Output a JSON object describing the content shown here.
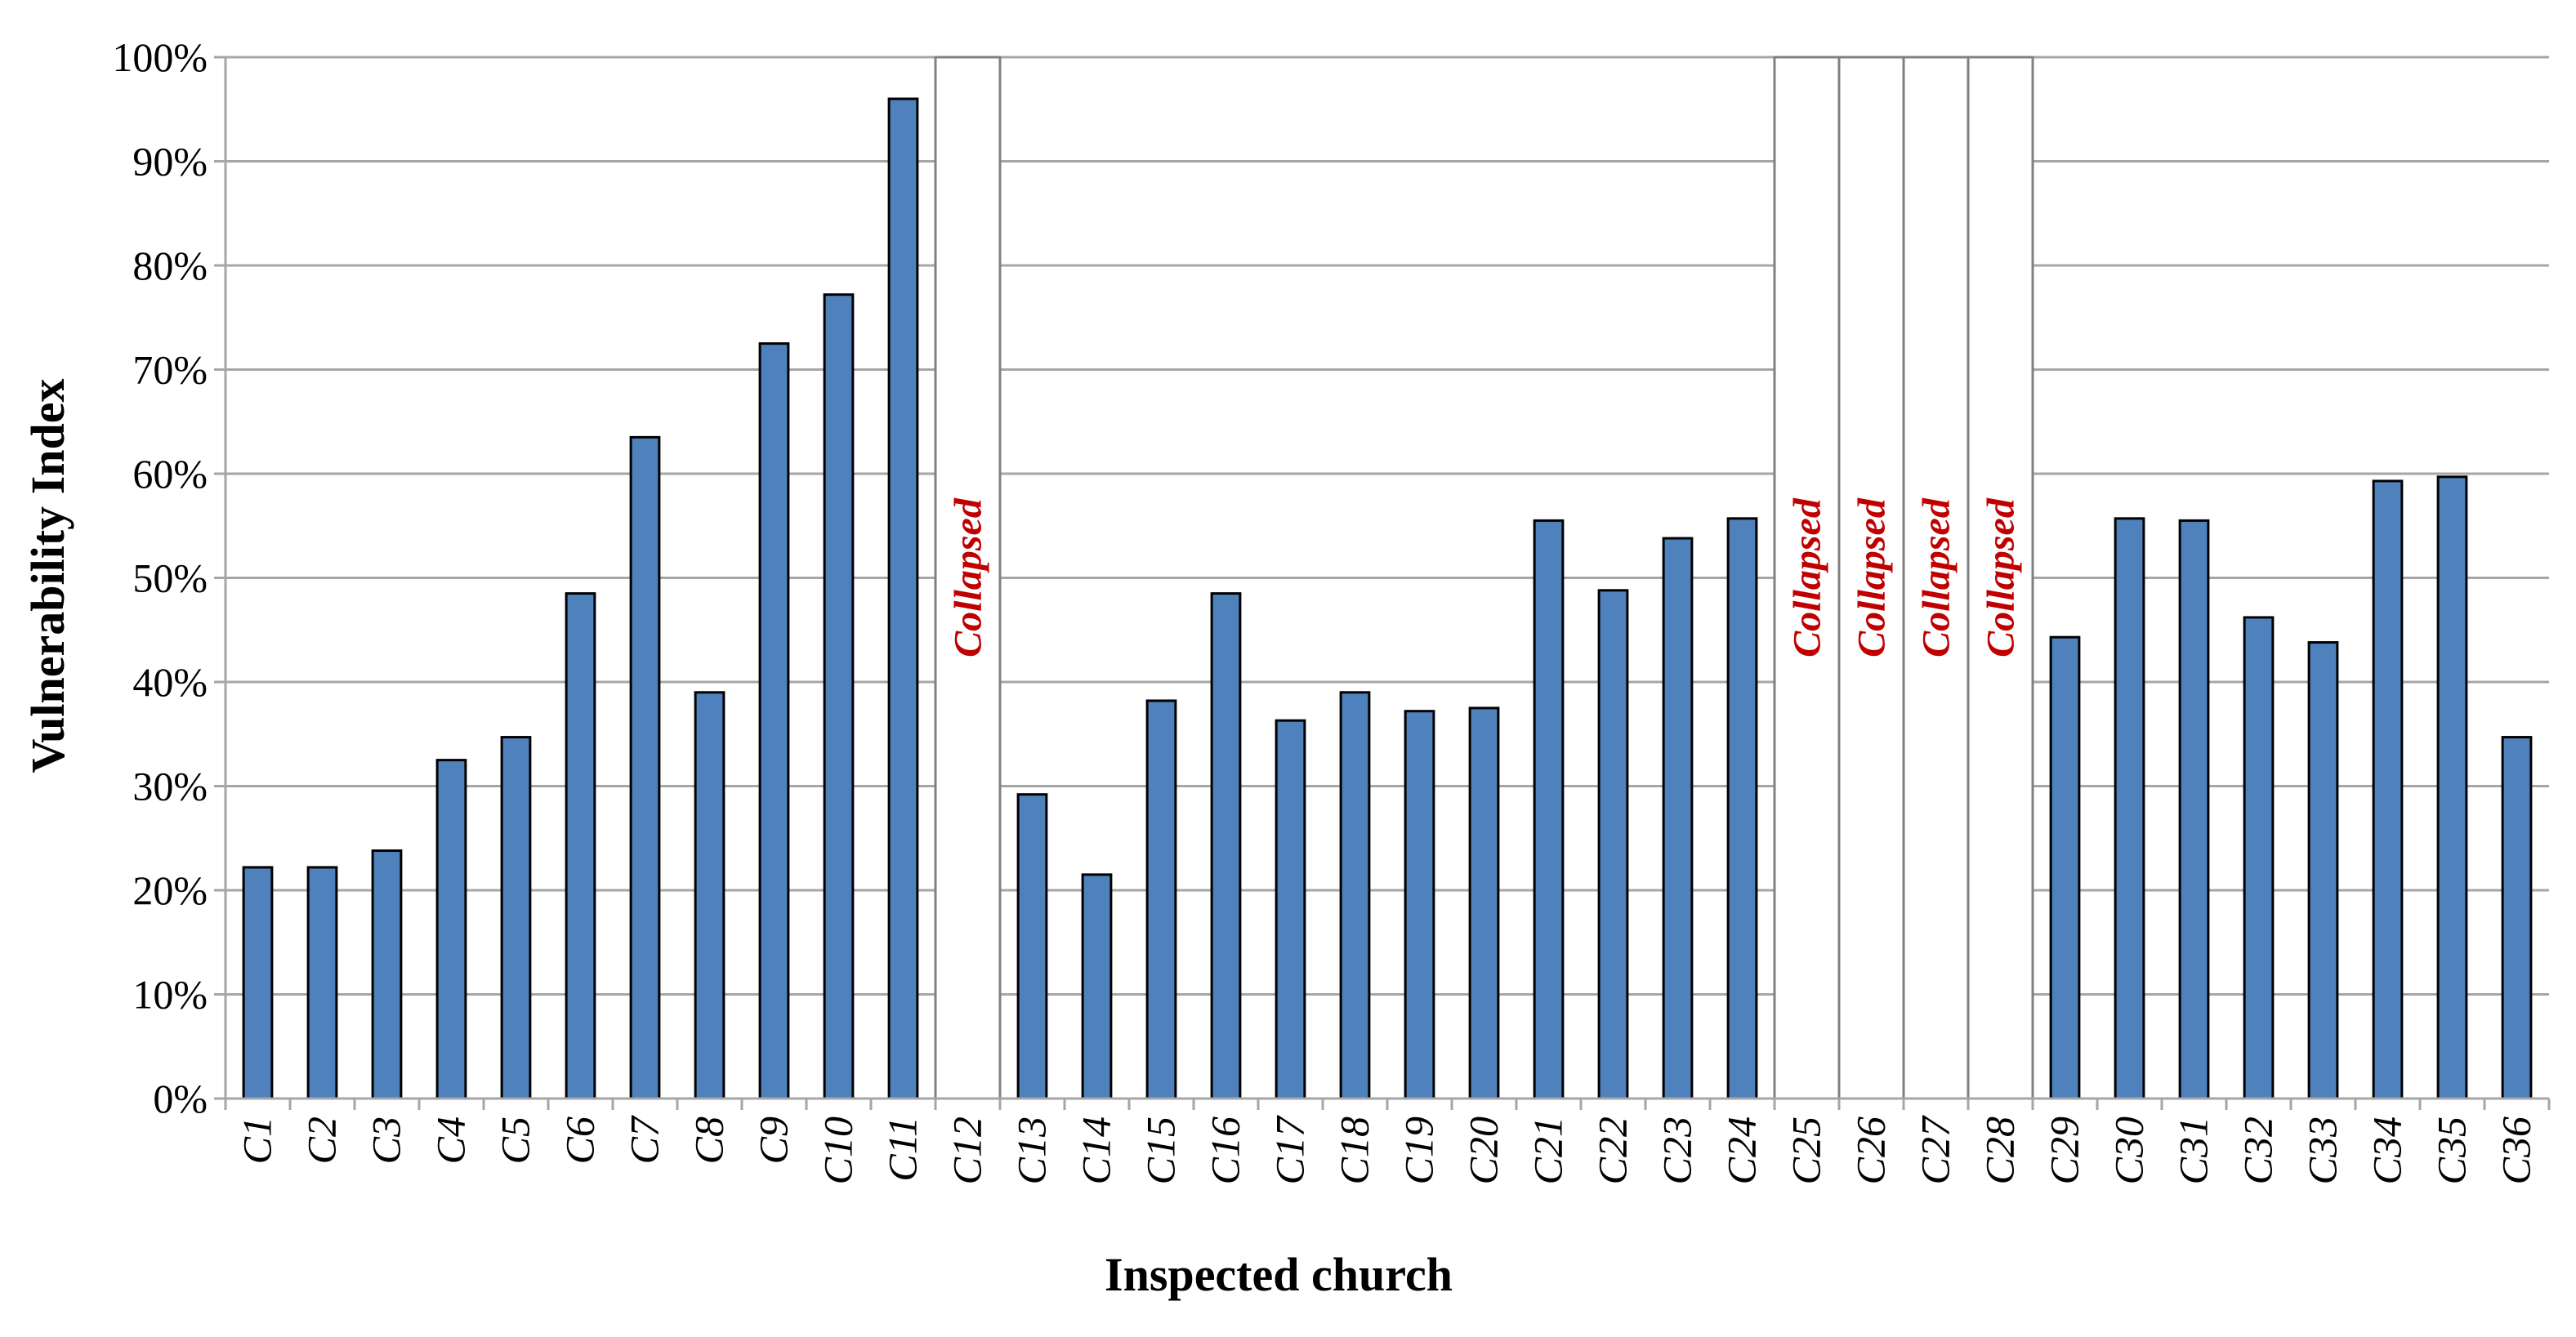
{
  "chart_data": {
    "type": "bar",
    "title": "",
    "xlabel": "Inspected church",
    "ylabel": "Vulnerability Index",
    "ylim": [
      0,
      100
    ],
    "yticks": [
      "0%",
      "10%",
      "20%",
      "30%",
      "40%",
      "50%",
      "60%",
      "70%",
      "80%",
      "90%",
      "100%"
    ],
    "grid": true,
    "categories": [
      "C1",
      "C2",
      "C3",
      "C4",
      "C5",
      "C6",
      "C7",
      "C8",
      "C9",
      "C10",
      "C11",
      "C12",
      "C13",
      "C14",
      "C15",
      "C16",
      "C17",
      "C18",
      "C19",
      "C20",
      "C21",
      "C22",
      "C23",
      "C24",
      "C25",
      "C26",
      "C27",
      "C28",
      "C29",
      "C30",
      "C31",
      "C32",
      "C33",
      "C34",
      "C35",
      "C36"
    ],
    "values": [
      22.2,
      22.2,
      23.8,
      32.5,
      34.7,
      48.5,
      63.5,
      39.0,
      72.5,
      77.2,
      96.0,
      null,
      29.2,
      21.5,
      38.2,
      48.5,
      36.3,
      39.0,
      37.2,
      37.5,
      55.5,
      48.8,
      53.8,
      55.7,
      null,
      null,
      null,
      null,
      44.3,
      55.7,
      55.5,
      46.2,
      43.8,
      59.3,
      59.7,
      34.7
    ],
    "collapsed": [
      "C12",
      "C25",
      "C26",
      "C27",
      "C28"
    ],
    "collapsed_label": "Collapsed",
    "colors": {
      "bar": "#4F81BD",
      "bar_outline": "#000000",
      "grid": "#A6A6A6",
      "collapsed_outline": "#808080",
      "collapsed_text": "#C00000"
    }
  }
}
